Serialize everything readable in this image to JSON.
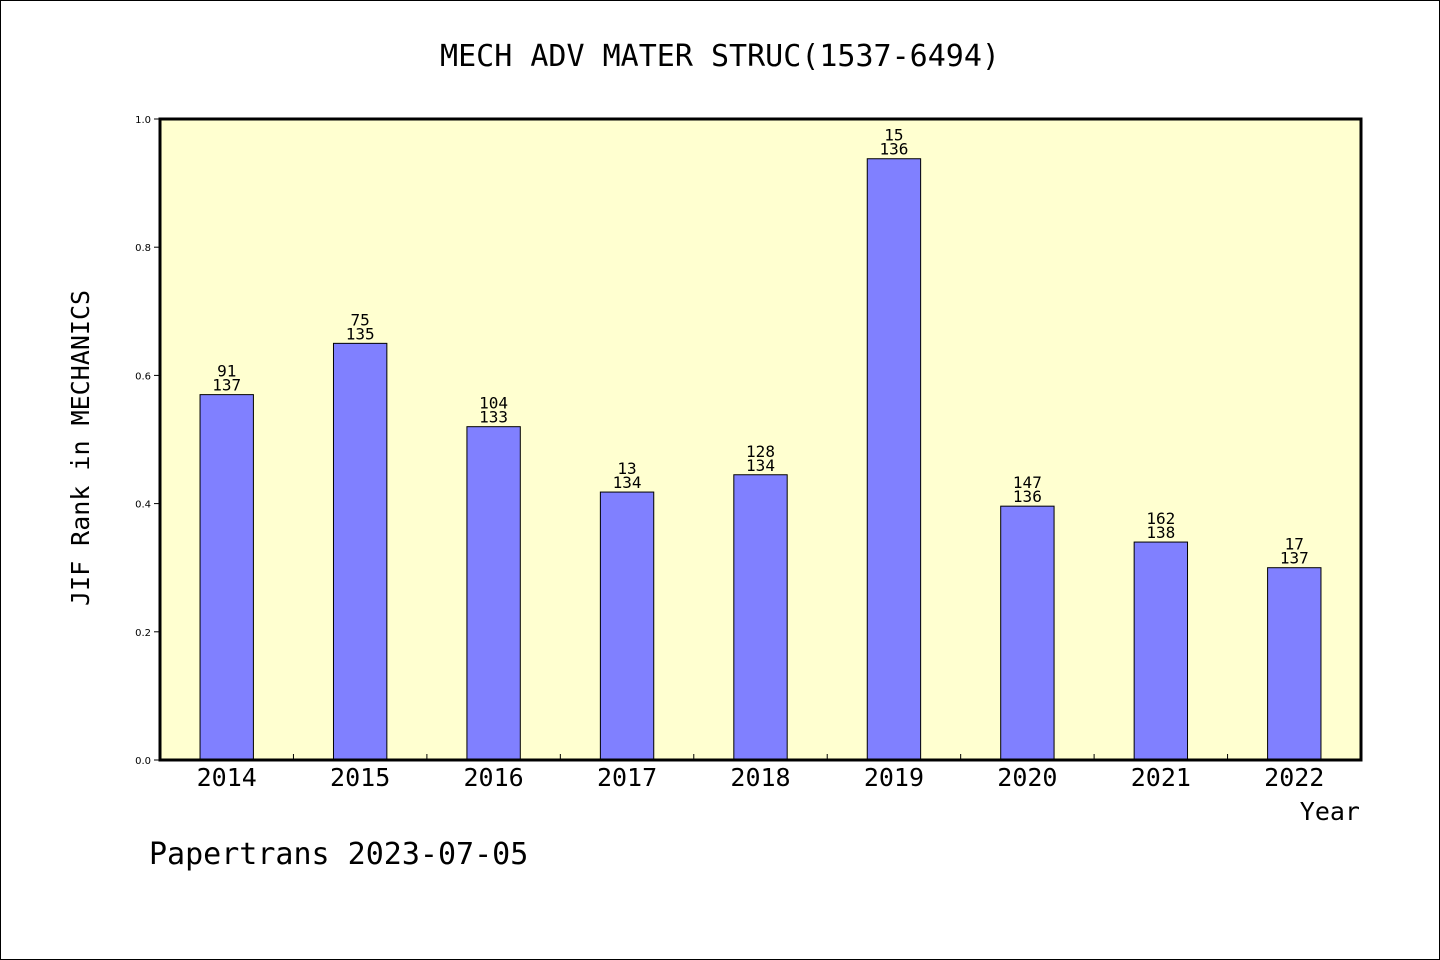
{
  "chart_data": {
    "type": "bar",
    "title": "MECH ADV MATER STRUC(1537-6494)",
    "xlabel": "Year",
    "ylabel": "JIF Rank in MECHANICS",
    "categories": [
      "2014",
      "2015",
      "2016",
      "2017",
      "2018",
      "2019",
      "2020",
      "2021",
      "2022"
    ],
    "values": [
      0.57,
      0.65,
      0.52,
      0.418,
      0.445,
      0.938,
      0.396,
      0.34,
      0.3
    ],
    "rank": [
      "91",
      "75",
      "104",
      "13",
      "128",
      "15",
      "147",
      "162",
      "17"
    ],
    "total": [
      "137",
      "135",
      "133",
      "134",
      "134",
      "136",
      "136",
      "138",
      "137"
    ],
    "ylim": [
      0,
      1.0
    ],
    "yticks": [
      "0.0",
      "0.2",
      "0.4",
      "0.6",
      "0.8",
      "1.0"
    ],
    "grid": false,
    "colors": {
      "bar": "#8080ff",
      "plot_bg": "#ffffd0",
      "axis": "#000000"
    }
  },
  "footer": "Papertrans 2023-07-05"
}
